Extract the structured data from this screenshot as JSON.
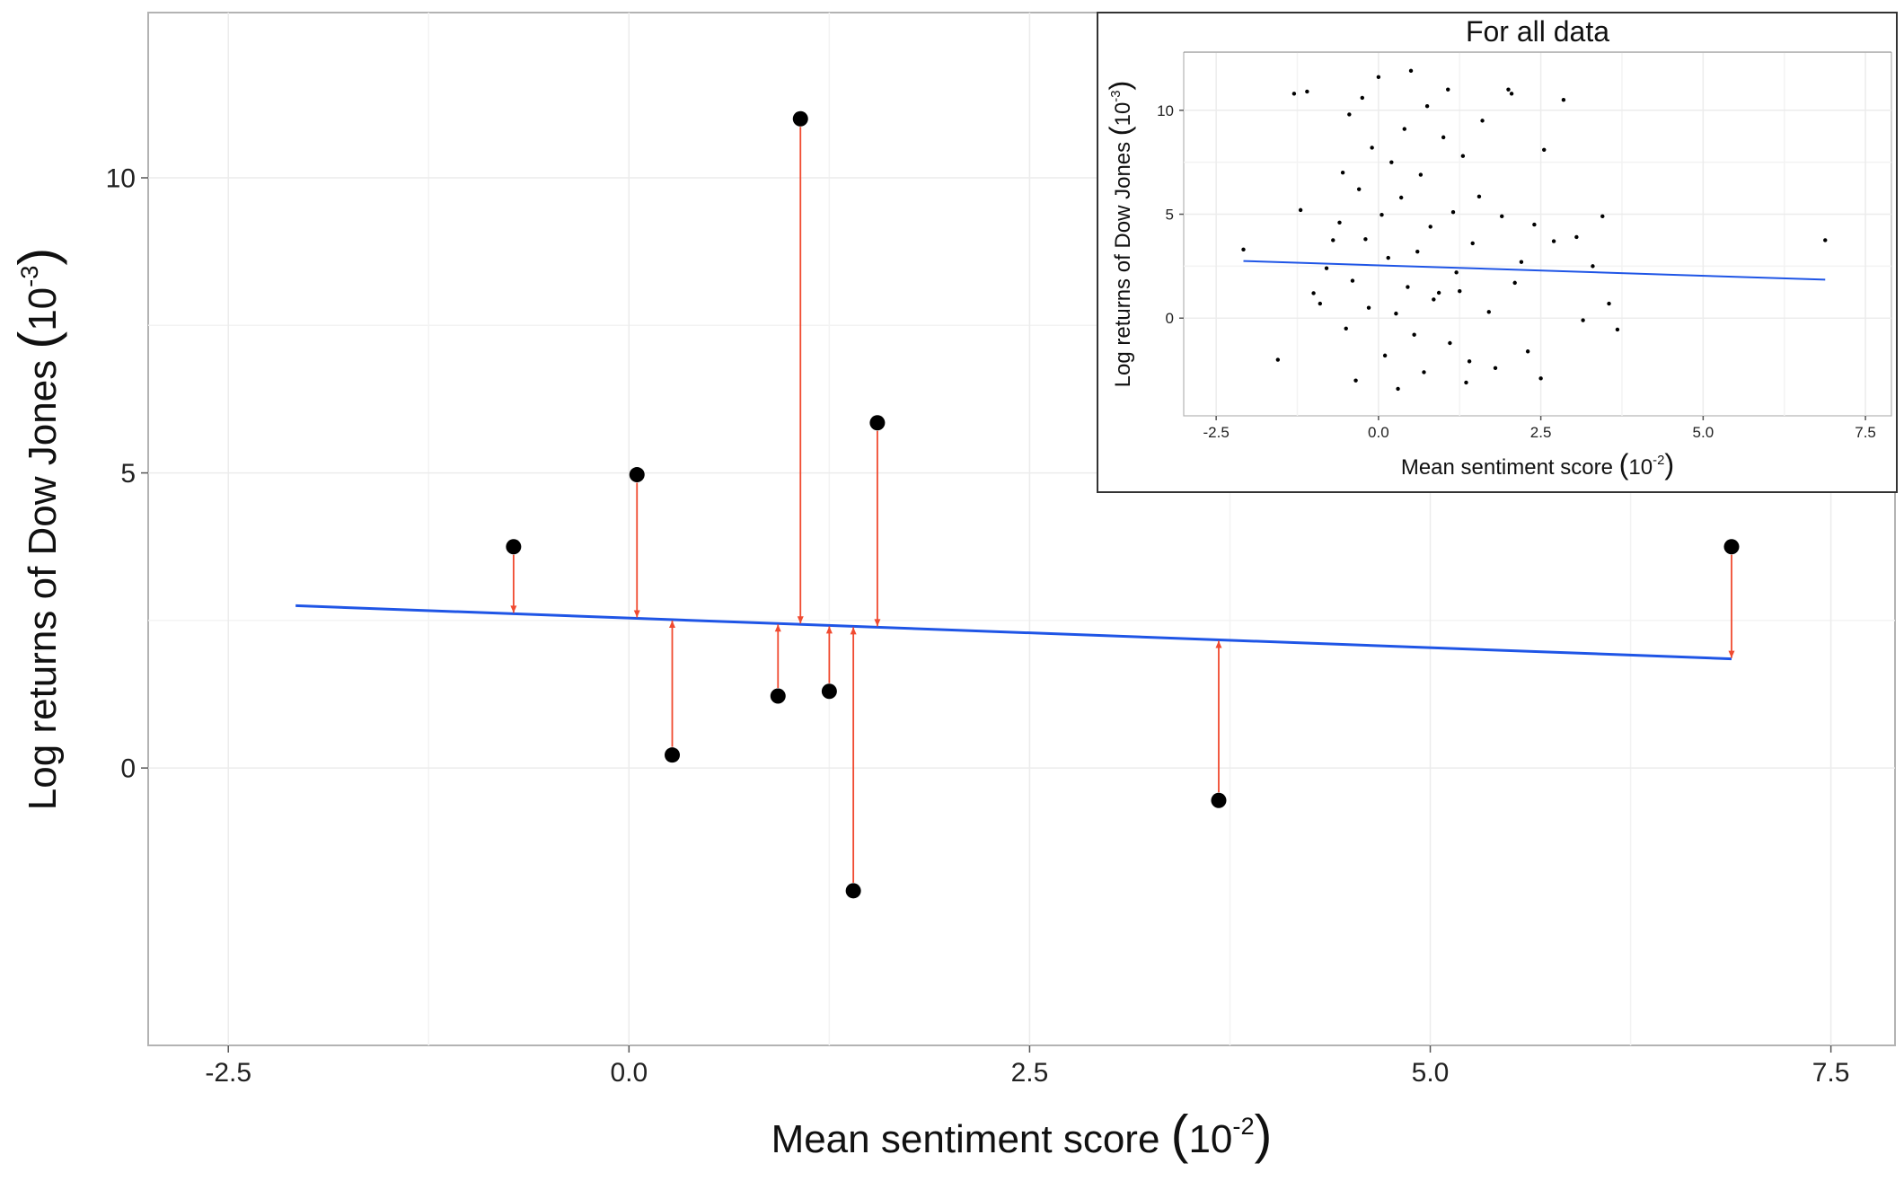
{
  "colors": {
    "fit_line": "#1f55e6",
    "residual": "#f04a30",
    "point": "#000000",
    "grid": "#ececec",
    "frame": "#b3b3b3",
    "inset_frame": "#333333"
  },
  "chart_data": [
    {
      "type": "scatter",
      "panel": "main",
      "title": "",
      "xlabel": "Mean sentiment score",
      "ylabel": "Log returns of Dow Jones",
      "x_unit_exp": "-2",
      "y_unit_exp": "-3",
      "xlim": [
        -3.0,
        7.9
      ],
      "ylim": [
        -4.7,
        12.8
      ],
      "x_ticks": [
        -2.5,
        0.0,
        2.5,
        5.0,
        7.5
      ],
      "x_tick_labels": [
        "-2.5",
        "0.0",
        "2.5",
        "5.0",
        "7.5"
      ],
      "y_ticks": [
        0,
        5,
        10
      ],
      "y_tick_labels": [
        "0",
        "5",
        "10"
      ],
      "grid": true,
      "points": [
        {
          "x": -0.72,
          "y": 3.75
        },
        {
          "x": 0.05,
          "y": 4.97
        },
        {
          "x": 0.27,
          "y": 0.22
        },
        {
          "x": 0.93,
          "y": 1.22
        },
        {
          "x": 1.07,
          "y": 11.0
        },
        {
          "x": 1.25,
          "y": 1.3
        },
        {
          "x": 1.4,
          "y": -2.08
        },
        {
          "x": 1.55,
          "y": 5.85
        },
        {
          "x": 3.68,
          "y": -0.55
        },
        {
          "x": 6.88,
          "y": 3.75
        }
      ],
      "fit_line": {
        "x": [
          -2.08,
          6.88
        ],
        "y": [
          2.75,
          1.85
        ]
      },
      "residuals_shown": true
    },
    {
      "type": "scatter",
      "panel": "inset",
      "title": "For all data",
      "xlabel": "Mean sentiment score",
      "ylabel": "Log returns of Dow Jones",
      "x_unit_exp": "-2",
      "y_unit_exp": "-3",
      "xlim": [
        -3.0,
        7.9
      ],
      "ylim": [
        -4.7,
        12.8
      ],
      "x_ticks": [
        -2.5,
        0.0,
        2.5,
        5.0,
        7.5
      ],
      "x_tick_labels": [
        "-2.5",
        "0.0",
        "2.5",
        "5.0",
        "7.5"
      ],
      "y_ticks": [
        0,
        5,
        10
      ],
      "y_tick_labels": [
        "0",
        "5",
        "10"
      ],
      "grid": true,
      "fit_line": {
        "x": [
          -2.08,
          6.88
        ],
        "y": [
          2.75,
          1.85
        ]
      },
      "points": [
        {
          "x": -2.08,
          "y": 3.3
        },
        {
          "x": -1.55,
          "y": -2.0
        },
        {
          "x": -1.3,
          "y": 10.8
        },
        {
          "x": -1.1,
          "y": 10.9
        },
        {
          "x": -1.2,
          "y": 5.2
        },
        {
          "x": -1.0,
          "y": 1.2
        },
        {
          "x": -0.9,
          "y": 0.7
        },
        {
          "x": -0.8,
          "y": 2.4
        },
        {
          "x": -0.7,
          "y": 3.75
        },
        {
          "x": -0.6,
          "y": 4.6
        },
        {
          "x": -0.55,
          "y": 7.0
        },
        {
          "x": -0.5,
          "y": -0.5
        },
        {
          "x": -0.45,
          "y": 9.8
        },
        {
          "x": -0.4,
          "y": 1.8
        },
        {
          "x": -0.35,
          "y": -3.0
        },
        {
          "x": -0.3,
          "y": 6.2
        },
        {
          "x": -0.25,
          "y": 10.6
        },
        {
          "x": -0.2,
          "y": 3.8
        },
        {
          "x": -0.15,
          "y": 0.5
        },
        {
          "x": -0.1,
          "y": 8.2
        },
        {
          "x": 0.0,
          "y": 11.6
        },
        {
          "x": 0.05,
          "y": 4.97
        },
        {
          "x": 0.1,
          "y": -1.8
        },
        {
          "x": 0.15,
          "y": 2.9
        },
        {
          "x": 0.2,
          "y": 7.5
        },
        {
          "x": 0.27,
          "y": 0.22
        },
        {
          "x": 0.3,
          "y": -3.4
        },
        {
          "x": 0.35,
          "y": 5.8
        },
        {
          "x": 0.4,
          "y": 9.1
        },
        {
          "x": 0.45,
          "y": 1.5
        },
        {
          "x": 0.5,
          "y": 11.9
        },
        {
          "x": 0.55,
          "y": -0.8
        },
        {
          "x": 0.6,
          "y": 3.2
        },
        {
          "x": 0.65,
          "y": 6.9
        },
        {
          "x": 0.7,
          "y": -2.6
        },
        {
          "x": 0.75,
          "y": 10.2
        },
        {
          "x": 0.8,
          "y": 4.4
        },
        {
          "x": 0.85,
          "y": 0.9
        },
        {
          "x": 0.93,
          "y": 1.22
        },
        {
          "x": 1.0,
          "y": 8.7
        },
        {
          "x": 1.07,
          "y": 11.0
        },
        {
          "x": 1.1,
          "y": -1.2
        },
        {
          "x": 1.15,
          "y": 5.1
        },
        {
          "x": 1.2,
          "y": 2.2
        },
        {
          "x": 1.25,
          "y": 1.3
        },
        {
          "x": 1.3,
          "y": 7.8
        },
        {
          "x": 1.35,
          "y": -3.1
        },
        {
          "x": 1.4,
          "y": -2.08
        },
        {
          "x": 1.45,
          "y": 3.6
        },
        {
          "x": 1.55,
          "y": 5.85
        },
        {
          "x": 1.6,
          "y": 9.5
        },
        {
          "x": 1.7,
          "y": 0.3
        },
        {
          "x": 1.8,
          "y": -2.4
        },
        {
          "x": 1.9,
          "y": 4.9
        },
        {
          "x": 2.0,
          "y": 11.0
        },
        {
          "x": 2.05,
          "y": 10.8
        },
        {
          "x": 2.1,
          "y": 1.7
        },
        {
          "x": 2.2,
          "y": 2.7
        },
        {
          "x": 2.3,
          "y": -1.6
        },
        {
          "x": 2.4,
          "y": 4.5
        },
        {
          "x": 2.5,
          "y": -2.9
        },
        {
          "x": 2.55,
          "y": 8.1
        },
        {
          "x": 2.7,
          "y": 3.7
        },
        {
          "x": 2.85,
          "y": 10.5
        },
        {
          "x": 3.05,
          "y": 3.9
        },
        {
          "x": 3.15,
          "y": -0.1
        },
        {
          "x": 3.3,
          "y": 2.5
        },
        {
          "x": 3.45,
          "y": 4.9
        },
        {
          "x": 3.55,
          "y": 0.7
        },
        {
          "x": 3.68,
          "y": -0.55
        },
        {
          "x": 6.88,
          "y": 3.75
        }
      ]
    }
  ]
}
